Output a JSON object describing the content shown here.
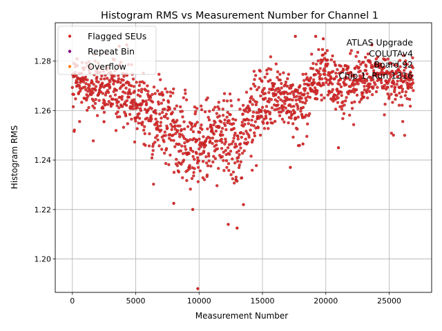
{
  "chart_data": {
    "type": "scatter",
    "title": "Histogram RMS vs Measurement Number for Channel 1",
    "xlabel": "Measurement Number",
    "ylabel": "Histogram RMS",
    "xlim": [
      -1350,
      28350
    ],
    "ylim": [
      1.1865,
      1.2955
    ],
    "x_ticks": [
      0,
      5000,
      10000,
      15000,
      20000,
      25000
    ],
    "x_tick_labels": [
      "0",
      "5000",
      "10000",
      "15000",
      "20000",
      "25000"
    ],
    "y_ticks": [
      1.2,
      1.22,
      1.24,
      1.26,
      1.28
    ],
    "y_tick_labels": [
      "1.20",
      "1.22",
      "1.24",
      "1.26",
      "1.28"
    ],
    "grid": true,
    "legend_position": "top-left",
    "legend": [
      {
        "label": "Flagged SEUs",
        "color": "#d62728"
      },
      {
        "label": "Repeat Bin",
        "color": "#800080"
      },
      {
        "label": "Overflow",
        "color": "#ff7f0e"
      }
    ],
    "annotation": [
      "ATLAS Upgrade",
      "COLUTAv4",
      "Board 92",
      "Chip 1, Run 1316"
    ],
    "point_color": "#d62728",
    "trend": {
      "x": [
        0,
        2000,
        4000,
        6000,
        8000,
        10000,
        12000,
        13000,
        14000,
        15000,
        16000,
        18000,
        19000,
        20000,
        21000,
        22000,
        24000,
        26000,
        26900
      ],
      "y": [
        1.272,
        1.27,
        1.268,
        1.26,
        1.254,
        1.246,
        1.25,
        1.245,
        1.256,
        1.266,
        1.267,
        1.262,
        1.272,
        1.276,
        1.27,
        1.272,
        1.275,
        1.272,
        1.272
      ]
    },
    "spread": {
      "x": [
        0,
        4000,
        6000,
        10000,
        13000,
        15000,
        18000,
        20000,
        22000,
        26900
      ],
      "y": [
        0.0045,
        0.006,
        0.007,
        0.009,
        0.0085,
        0.007,
        0.005,
        0.0055,
        0.005,
        0.0045
      ]
    },
    "n_points": 1500,
    "x_max": 26900,
    "outliers": [
      {
        "x": 9900,
        "y": 1.188
      },
      {
        "x": 12300,
        "y": 1.214
      },
      {
        "x": 13000,
        "y": 1.2125
      },
      {
        "x": 17600,
        "y": 1.29
      },
      {
        "x": 19200,
        "y": 1.29
      },
      {
        "x": 19800,
        "y": 1.289
      },
      {
        "x": 3700,
        "y": 1.286
      },
      {
        "x": 4300,
        "y": 1.2865
      },
      {
        "x": 21000,
        "y": 1.245
      },
      {
        "x": 8000,
        "y": 1.2225
      },
      {
        "x": 9500,
        "y": 1.22
      },
      {
        "x": 18200,
        "y": 1.2465
      },
      {
        "x": 17200,
        "y": 1.237
      },
      {
        "x": 13500,
        "y": 1.222
      },
      {
        "x": 2500,
        "y": 1.2555
      }
    ]
  }
}
